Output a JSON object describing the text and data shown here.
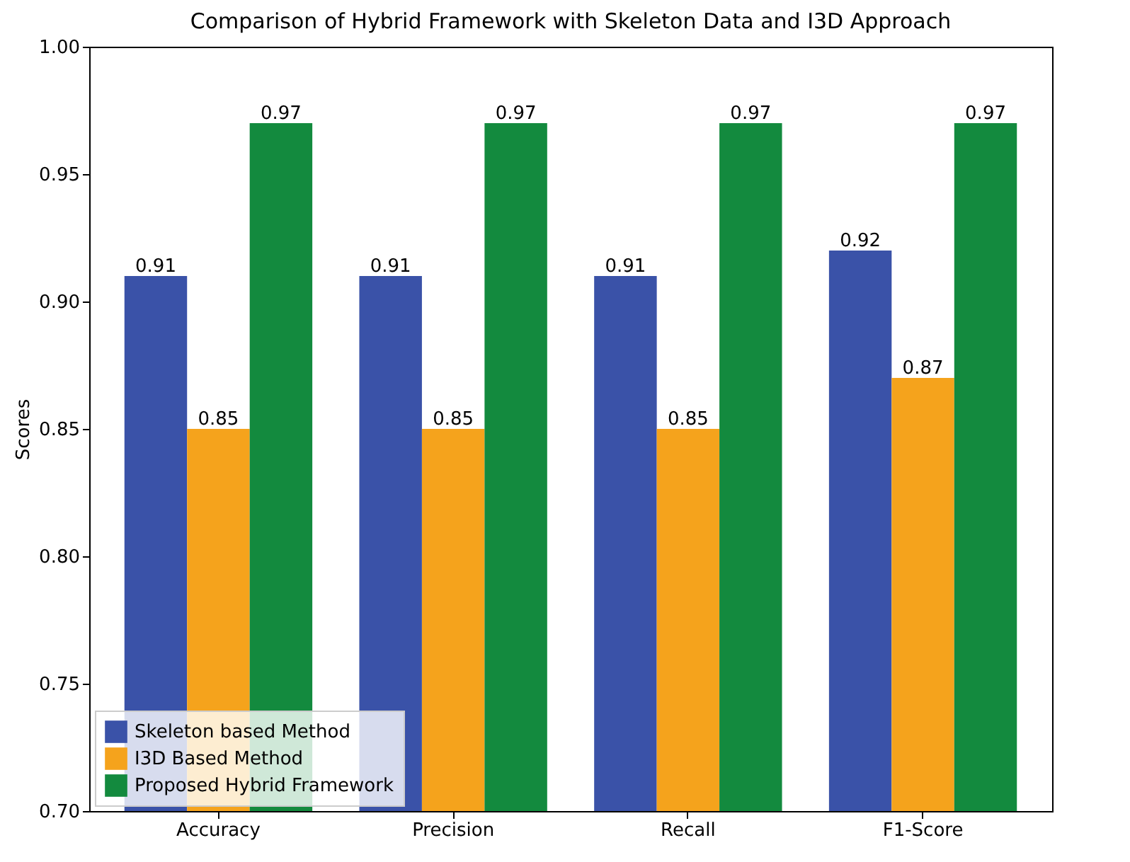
{
  "chart_data": {
    "type": "bar",
    "title": "Comparison of Hybrid Framework with Skeleton Data and I3D Approach",
    "ylabel": "Scores",
    "categories": [
      "Accuracy",
      "Precision",
      "Recall",
      "F1-Score"
    ],
    "series": [
      {
        "name": "Skeleton based Method",
        "color": "#3a52a8",
        "values": [
          0.91,
          0.91,
          0.91,
          0.92
        ]
      },
      {
        "name": "I3D Based Method",
        "color": "#f5a31c",
        "values": [
          0.85,
          0.85,
          0.85,
          0.87
        ]
      },
      {
        "name": "Proposed Hybrid Framework",
        "color": "#138a3e",
        "values": [
          0.97,
          0.97,
          0.97,
          0.97
        ]
      }
    ],
    "ylim": [
      0.7,
      1.0
    ],
    "yticks": [
      {
        "value": 0.7,
        "label": "0.70"
      },
      {
        "value": 0.75,
        "label": "0.75"
      },
      {
        "value": 0.8,
        "label": "0.80"
      },
      {
        "value": 0.85,
        "label": "0.85"
      },
      {
        "value": 0.9,
        "label": "0.90"
      },
      {
        "value": 0.95,
        "label": "0.95"
      },
      {
        "value": 1.0,
        "label": "1.00"
      }
    ],
    "data_labels": true,
    "legend": "bottom left",
    "grid": false
  }
}
